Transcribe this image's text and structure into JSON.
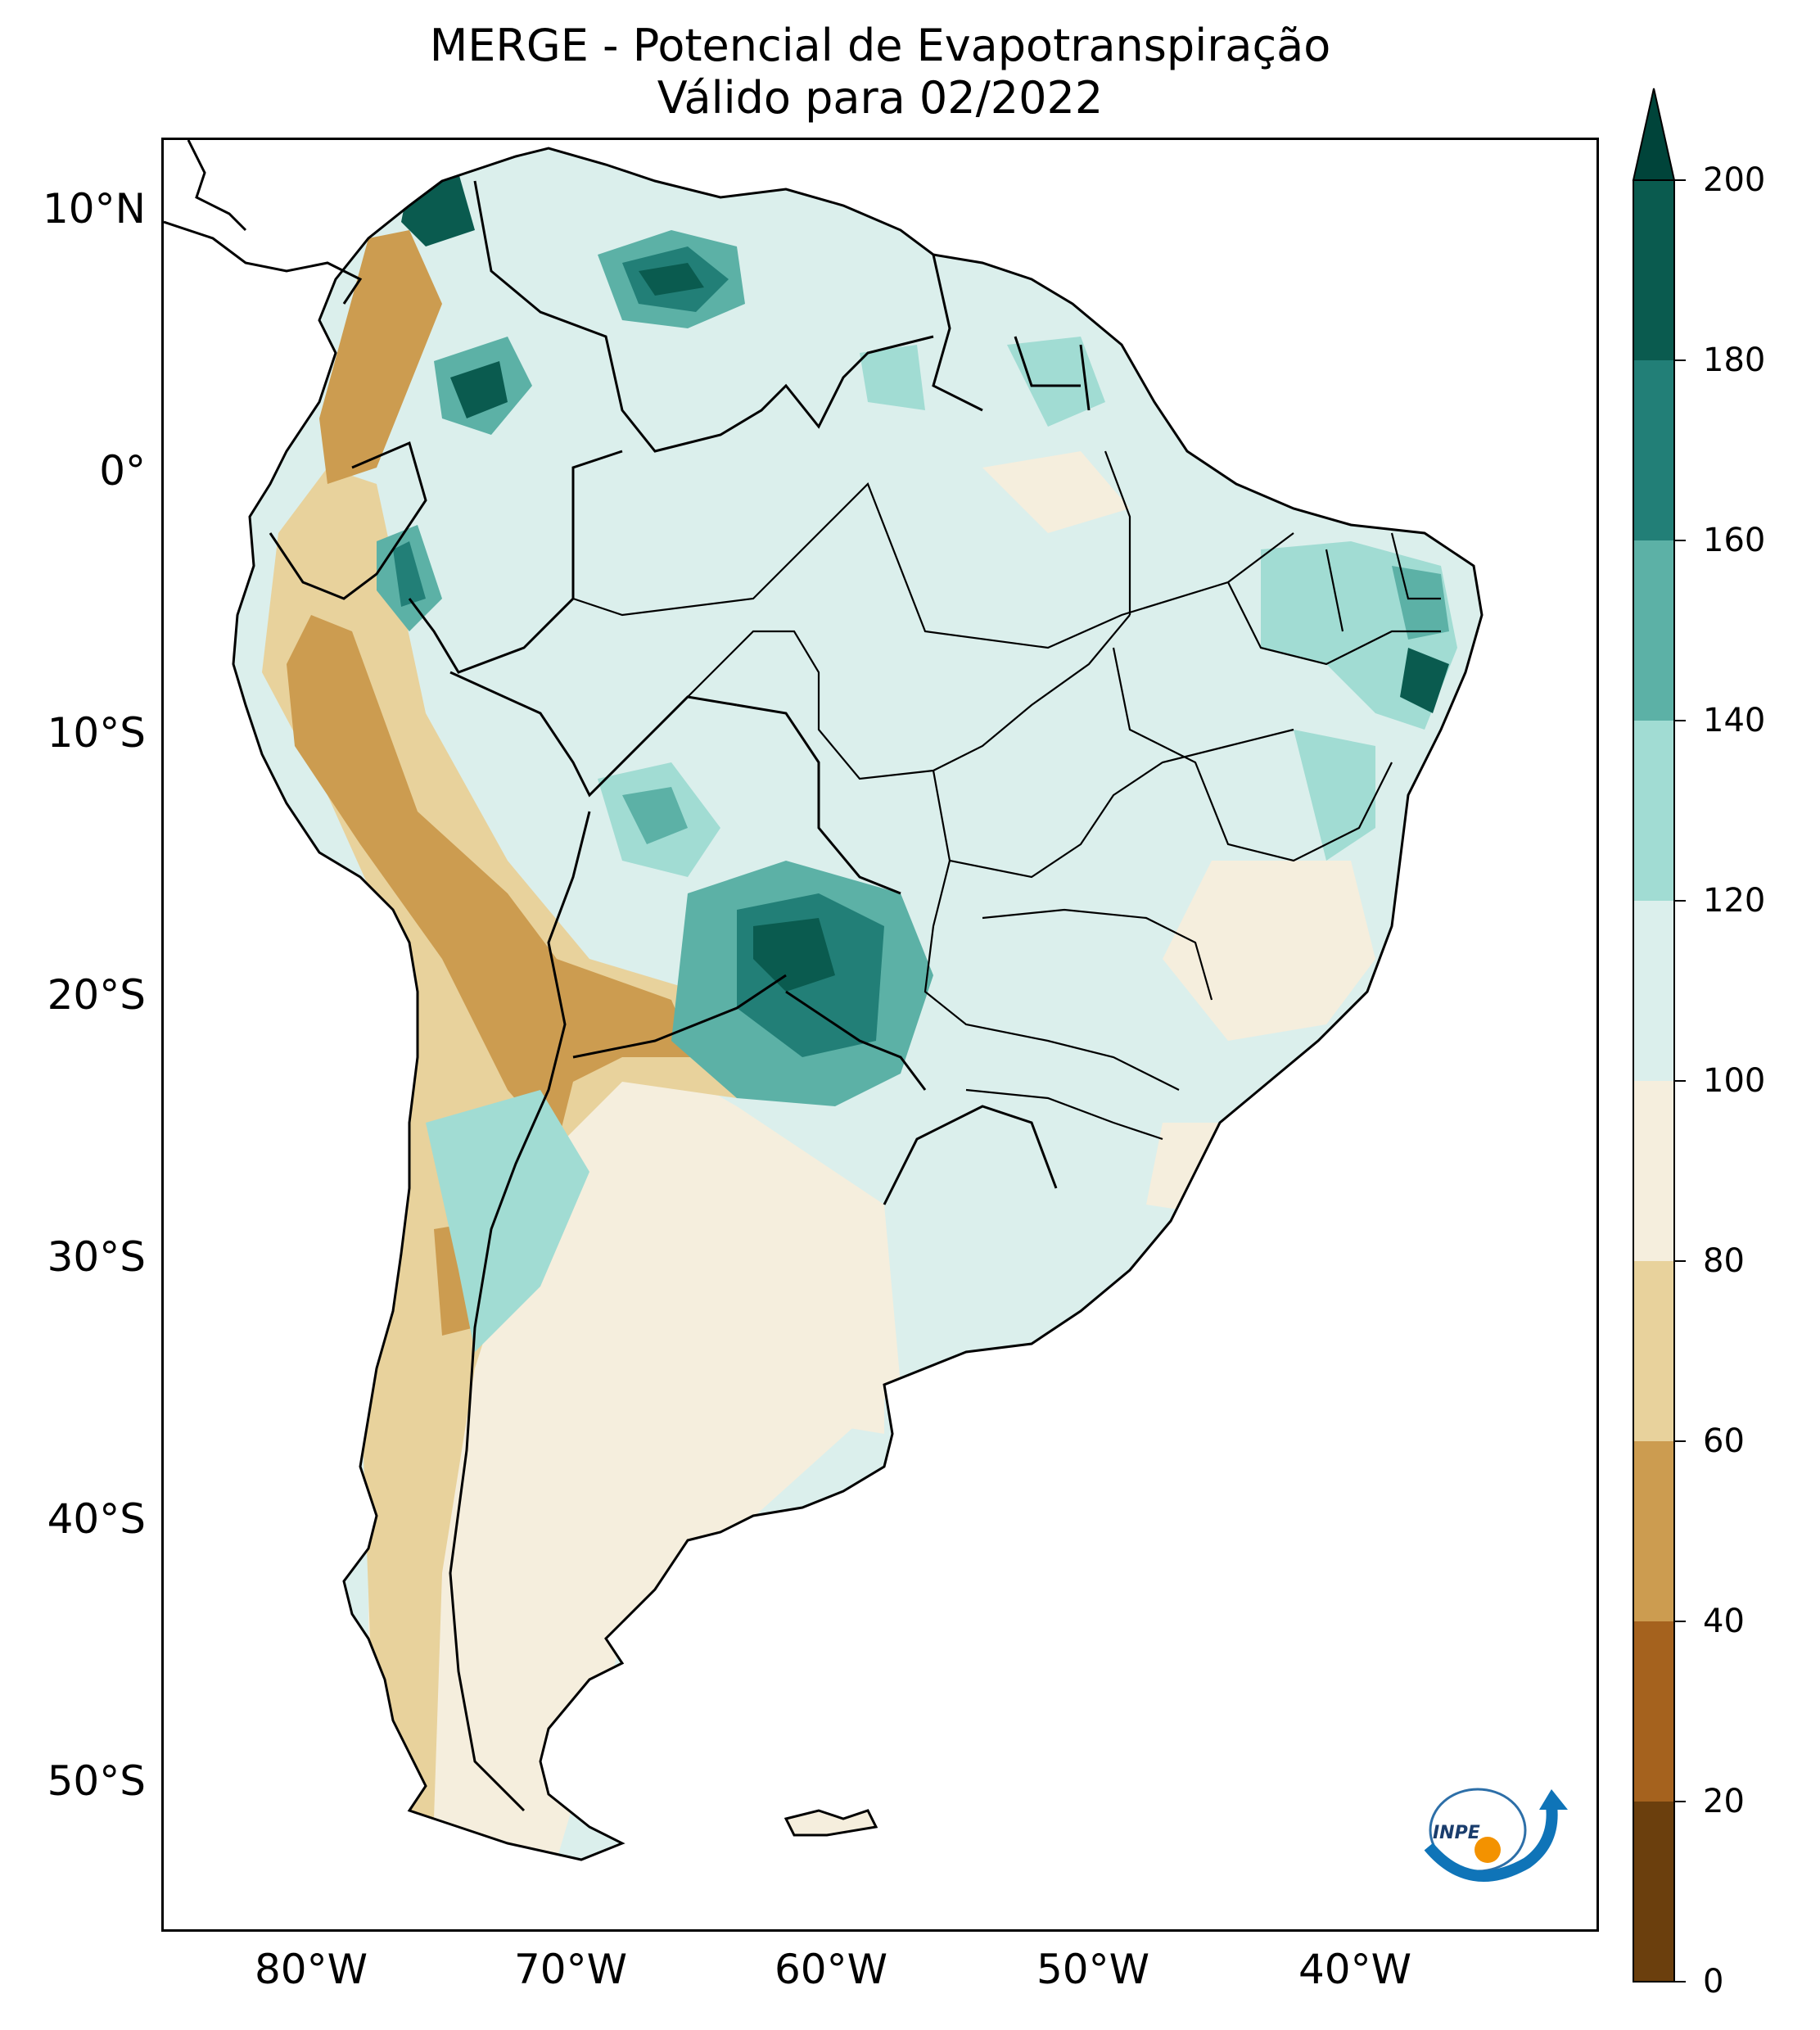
{
  "title": {
    "line1": "MERGE - Potencial de Evapotranspiração",
    "line2": "Válido para 02/2022"
  },
  "axes": {
    "lat_labels": [
      "10°N",
      "0°",
      "10°S",
      "20°S",
      "30°S",
      "40°S",
      "50°S"
    ],
    "lon_labels": [
      "80°W",
      "70°W",
      "60°W",
      "50°W",
      "40°W"
    ]
  },
  "colorbar": {
    "tick_labels": [
      "200",
      "180",
      "160",
      "140",
      "120",
      "100",
      "80",
      "60",
      "40",
      "20",
      "0"
    ],
    "levels": [
      0,
      20,
      40,
      60,
      80,
      100,
      120,
      140,
      160,
      180,
      200
    ],
    "colors": [
      "#6b3f0d",
      "#a5621e",
      "#cc9c50",
      "#e8d29c",
      "#f5eedd",
      "#dbefec",
      "#a1dcd3",
      "#5cb1a6",
      "#227f77",
      "#0a5b4f"
    ],
    "extend_color": "#00443a"
  },
  "logo": {
    "text": "INPE"
  }
}
